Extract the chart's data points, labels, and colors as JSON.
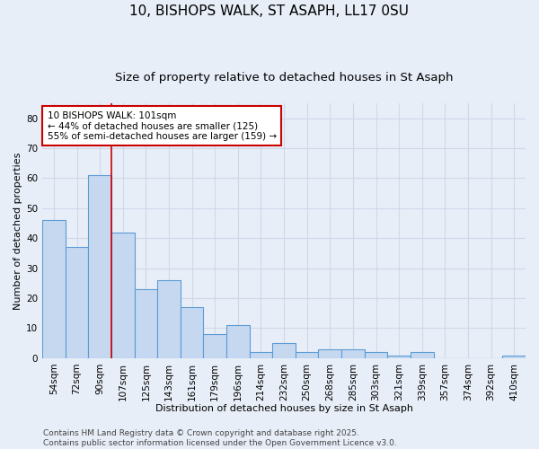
{
  "title": "10, BISHOPS WALK, ST ASAPH, LL17 0SU",
  "subtitle": "Size of property relative to detached houses in St Asaph",
  "xlabel": "Distribution of detached houses by size in St Asaph",
  "ylabel": "Number of detached properties",
  "categories": [
    "54sqm",
    "72sqm",
    "90sqm",
    "107sqm",
    "125sqm",
    "143sqm",
    "161sqm",
    "179sqm",
    "196sqm",
    "214sqm",
    "232sqm",
    "250sqm",
    "268sqm",
    "285sqm",
    "303sqm",
    "321sqm",
    "339sqm",
    "357sqm",
    "374sqm",
    "392sqm",
    "410sqm"
  ],
  "values": [
    46,
    37,
    61,
    42,
    23,
    26,
    17,
    8,
    11,
    2,
    5,
    2,
    3,
    3,
    2,
    1,
    2,
    0,
    0,
    0,
    1
  ],
  "bar_color": "#c5d8f0",
  "bar_edge_color": "#5b9bd5",
  "grid_color": "#d0d8e8",
  "background_color": "#e8eef8",
  "annotation_line1": "10 BISHOPS WALK: 101sqm",
  "annotation_line2": "← 44% of detached houses are smaller (125)",
  "annotation_line3": "55% of semi-detached houses are larger (159) →",
  "annotation_box_color": "#ffffff",
  "annotation_box_edge": "#cc0000",
  "redline_x": 2.5,
  "ylim": [
    0,
    85
  ],
  "yticks": [
    0,
    10,
    20,
    30,
    40,
    50,
    60,
    70,
    80
  ],
  "footer": "Contains HM Land Registry data © Crown copyright and database right 2025.\nContains public sector information licensed under the Open Government Licence v3.0.",
  "title_fontsize": 11,
  "subtitle_fontsize": 9.5,
  "axis_label_fontsize": 8,
  "tick_fontsize": 7.5,
  "annotation_fontsize": 7.5,
  "footer_fontsize": 6.5
}
